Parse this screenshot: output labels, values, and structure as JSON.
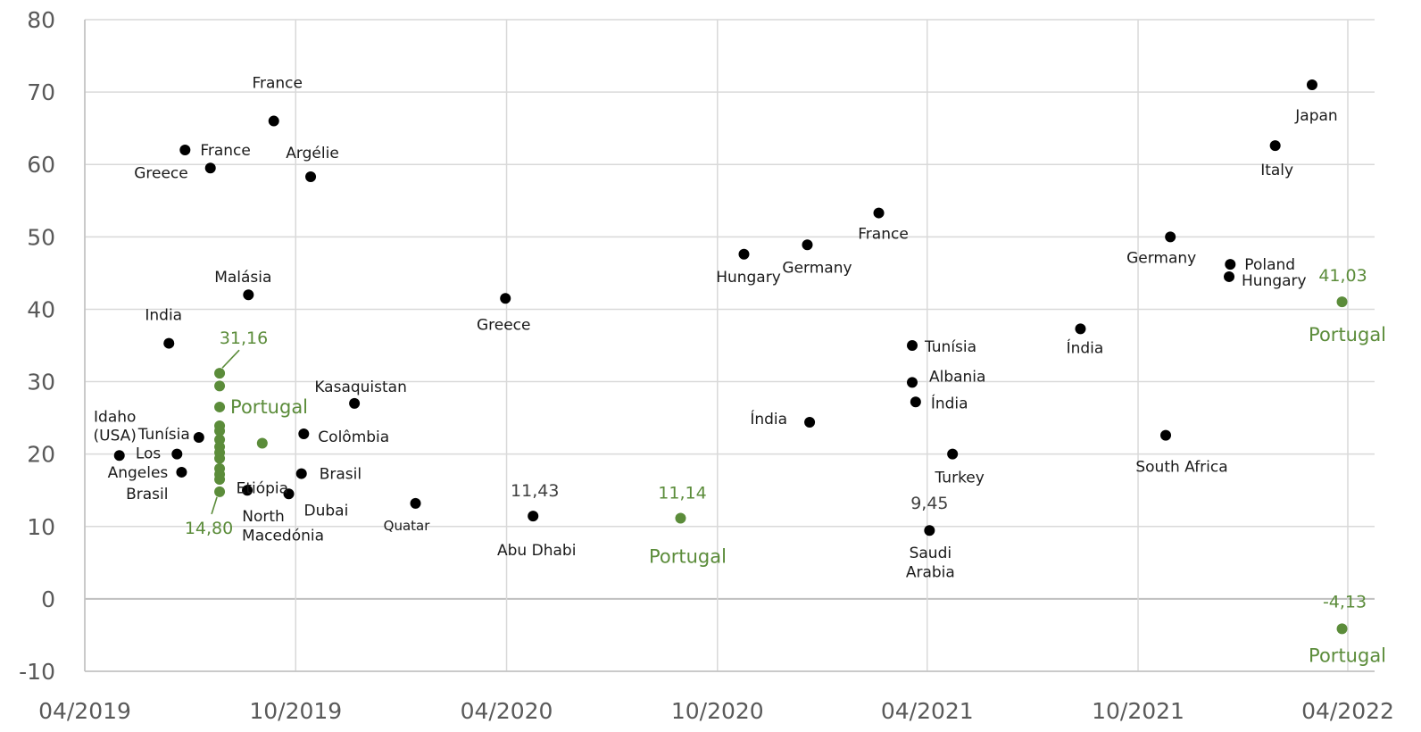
{
  "chart_data": {
    "type": "scatter",
    "title": "",
    "xlabel": "",
    "ylabel": "",
    "xlim": [
      "2019-04-01",
      "2022-04-01"
    ],
    "ylim": [
      -10,
      80
    ],
    "yticks": [
      -10,
      0,
      10,
      20,
      30,
      40,
      50,
      60,
      70,
      80
    ],
    "xticks": [
      {
        "date": "2019-04-01",
        "label": "04/2019"
      },
      {
        "date": "2019-10-01",
        "label": "10/2019"
      },
      {
        "date": "2020-04-01",
        "label": "04/2020"
      },
      {
        "date": "2020-10-01",
        "label": "10/2020"
      },
      {
        "date": "2021-04-01",
        "label": "04/2021"
      },
      {
        "date": "2021-10-01",
        "label": "10/2021"
      },
      {
        "date": "2022-04-01",
        "label": "04/2022"
      }
    ],
    "grid": true,
    "colors": {
      "other": "#000000",
      "portugal": "#5b8c3a",
      "grid": "#d9d9d9",
      "axis": "#bfbfbf"
    },
    "series": [
      {
        "color": "#000000",
        "points": [
          {
            "x": "2019-05-01",
            "y": 19.8,
            "label": "Idaho (USA)"
          },
          {
            "x": "2019-06-13",
            "y": 35.3,
            "label": "India"
          },
          {
            "x": "2019-06-20",
            "y": 20.0,
            "label": "Los Angeles"
          },
          {
            "x": "2019-06-24",
            "y": 17.5,
            "label": "Brasil"
          },
          {
            "x": "2019-06-27",
            "y": 62.0,
            "label": "France"
          },
          {
            "x": "2019-07-09",
            "y": 22.3,
            "label": "Tunísia"
          },
          {
            "x": "2019-07-19",
            "y": 59.5,
            "label": "Greece"
          },
          {
            "x": "2019-08-20",
            "y": 15.0,
            "label": "North Macedónia"
          },
          {
            "x": "2019-08-21",
            "y": 42.0,
            "label": "Malásia"
          },
          {
            "x": "2019-09-12",
            "y": 66.0,
            "label": "France"
          },
          {
            "x": "2019-09-25",
            "y": 14.5,
            "label": "Dubai"
          },
          {
            "x": "2019-10-06",
            "y": 17.3,
            "label": "Brasil"
          },
          {
            "x": "2019-10-08",
            "y": 22.8,
            "label": "Colômbia"
          },
          {
            "x": "2019-10-14",
            "y": 58.3,
            "label": "Argélie"
          },
          {
            "x": "2019-11-21",
            "y": 27.0,
            "label": "Kasaquistan"
          },
          {
            "x": "2020-01-13",
            "y": 13.2,
            "label": "Quatar"
          },
          {
            "x": "2020-03-31",
            "y": 41.5,
            "label": "Greece"
          },
          {
            "x": "2020-04-24",
            "y": 11.43,
            "label": "Abu Dhabi",
            "value_label": "11,43"
          },
          {
            "x": "2020-10-24",
            "y": 47.6,
            "label": "Hungary"
          },
          {
            "x": "2020-12-18",
            "y": 48.9,
            "label": "Germany"
          },
          {
            "x": "2020-12-20",
            "y": 24.4,
            "label": "Índia"
          },
          {
            "x": "2021-02-18",
            "y": 53.3,
            "label": "France"
          },
          {
            "x": "2021-03-19",
            "y": 35.0,
            "label": "Tunísia"
          },
          {
            "x": "2021-03-19",
            "y": 29.9,
            "label": "Albania"
          },
          {
            "x": "2021-03-22",
            "y": 27.2,
            "label": "Índia"
          },
          {
            "x": "2021-04-03",
            "y": 9.45,
            "label": "Saudi Arabia",
            "value_label": "9,45"
          },
          {
            "x": "2021-04-23",
            "y": 20.0,
            "label": "Turkey"
          },
          {
            "x": "2021-08-12",
            "y": 37.3,
            "label": "Índia"
          },
          {
            "x": "2021-10-25",
            "y": 22.6,
            "label": "South Africa"
          },
          {
            "x": "2021-10-29",
            "y": 50.0,
            "label": "Germany"
          },
          {
            "x": "2021-12-20",
            "y": 46.2,
            "label": "Poland"
          },
          {
            "x": "2021-12-19",
            "y": 44.5,
            "label": "Hungary"
          },
          {
            "x": "2022-01-28",
            "y": 62.6,
            "label": "Italy"
          },
          {
            "x": "2022-03-01",
            "y": 71.0,
            "label": "Japan"
          }
        ]
      },
      {
        "color": "#5b8c3a",
        "points": [
          {
            "x": "2019-07-27",
            "y": 31.16,
            "value_label": "31,16"
          },
          {
            "x": "2019-07-27",
            "y": 29.4
          },
          {
            "x": "2019-07-27",
            "y": 26.5,
            "label": "Portugal"
          },
          {
            "x": "2019-07-27",
            "y": 23.9
          },
          {
            "x": "2019-07-27",
            "y": 23.2
          },
          {
            "x": "2019-07-27",
            "y": 22.0
          },
          {
            "x": "2019-07-27",
            "y": 21.0
          },
          {
            "x": "2019-07-27",
            "y": 20.2
          },
          {
            "x": "2019-07-27",
            "y": 19.4
          },
          {
            "x": "2019-07-27",
            "y": 18.0
          },
          {
            "x": "2019-07-27",
            "y": 17.2
          },
          {
            "x": "2019-07-27",
            "y": 16.5
          },
          {
            "x": "2019-07-27",
            "y": 14.8,
            "value_label": "14,80"
          },
          {
            "x": "2019-09-02",
            "y": 21.5,
            "label": "Etiópia"
          },
          {
            "x": "2020-08-30",
            "y": 11.14,
            "label": "Portugal",
            "value_label": "11,14"
          },
          {
            "x": "2022-03-27",
            "y": 41.03,
            "label": "Portugal",
            "value_label": "41,03"
          },
          {
            "x": "2022-03-27",
            "y": -4.13,
            "label": "Portugal",
            "value_label": "-4,13"
          }
        ]
      }
    ]
  }
}
